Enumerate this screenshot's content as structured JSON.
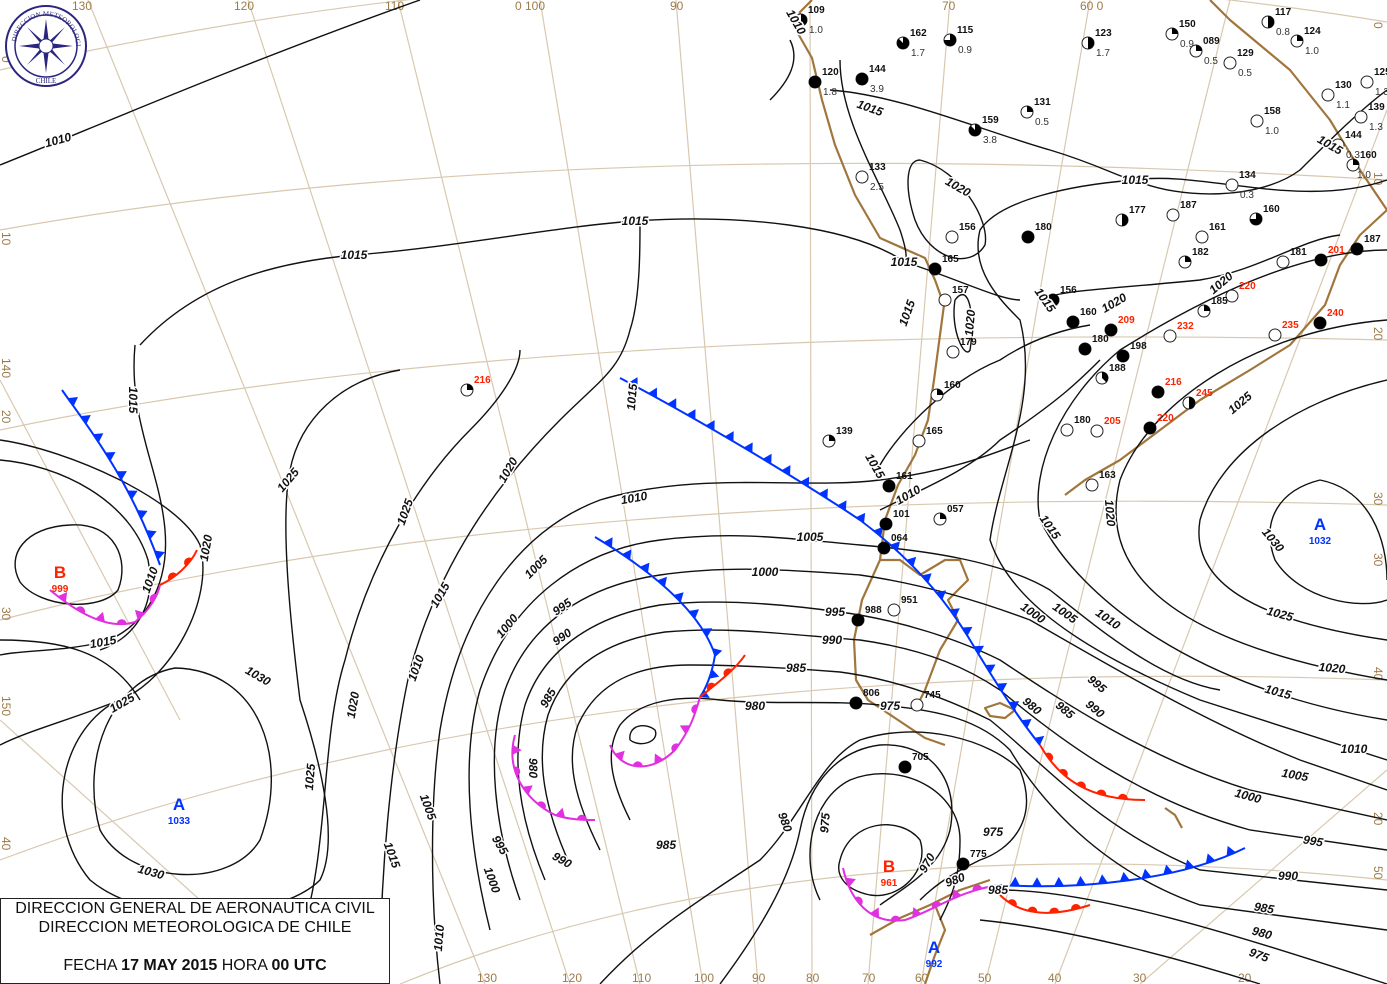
{
  "caption": {
    "line1": "DIRECCION GENERAL DE AERONAUTICA CIVIL",
    "line2": "DIRECCION METEOROLOGICA DE CHILE",
    "fecha_label": "FECHA",
    "date": "17 MAY 2015",
    "hora_label": "HORA",
    "time": "00 UTC"
  },
  "logo": {
    "top_text": "DIRECCION METEOROLOGICA",
    "bottom_text": "CHILE",
    "icon": "compass-rose-icon"
  },
  "graticule_labels": {
    "top": [
      "130",
      "120",
      "110",
      "0 100",
      "90",
      "70",
      "60 0"
    ],
    "bottom": [
      "130",
      "120",
      "110",
      "100",
      "90",
      "80",
      "70",
      "60",
      "50",
      "40",
      "30",
      "20"
    ],
    "left": [
      "0",
      "10",
      "140",
      "20",
      "30",
      "150",
      "40"
    ],
    "right": [
      "0",
      "10",
      "20",
      "30",
      "30",
      "40",
      "20",
      "50"
    ]
  },
  "isobar_labels": [
    "1010",
    "1015",
    "1015",
    "1015",
    "1020",
    "1025",
    "1025",
    "1010",
    "1020",
    "1015",
    "1015",
    "1005",
    "1000",
    "995",
    "990",
    "1010",
    "1005",
    "1000",
    "985",
    "980",
    "985",
    "995",
    "990",
    "980",
    "975",
    "1030",
    "1025",
    "1020",
    "1010",
    "1025",
    "1005",
    "1015",
    "995",
    "1000",
    "990",
    "985",
    "980",
    "975",
    "970",
    "975",
    "980",
    "985",
    "1030",
    "1010",
    "1000",
    "1005",
    "1010",
    "995",
    "990",
    "985",
    "980",
    "1025",
    "1020",
    "1015",
    "1010",
    "1005",
    "1000",
    "995",
    "990",
    "985",
    "980",
    "975",
    "1030",
    "1025",
    "1020",
    "1015",
    "1015",
    "1015",
    "1020",
    "1015",
    "1015",
    "1020",
    "1015",
    "1010",
    "1015",
    "1020",
    "1020",
    "1015",
    "1015",
    "1010"
  ],
  "pressure_centers": [
    {
      "type": "B",
      "value": "999",
      "color": "#ff2200"
    },
    {
      "type": "A",
      "value": "1033",
      "color": "#0033ff"
    },
    {
      "type": "A",
      "value": "1032",
      "color": "#0033ff"
    },
    {
      "type": "B",
      "value": "961",
      "color": "#ff2200"
    },
    {
      "type": "A",
      "value": "992",
      "color": "#0033ff"
    }
  ],
  "front_colors": {
    "cold": "#0033ff",
    "warm": "#ff2200",
    "occluded": "#e030e0"
  },
  "stations": [
    {
      "code": "109",
      "cover_oktas": 4,
      "red": false
    },
    {
      "code": "120",
      "cover_oktas": 8,
      "red": false
    },
    {
      "code": "144",
      "cover_oktas": 8,
      "red": false
    },
    {
      "code": "162",
      "cover_oktas": 7,
      "red": false
    },
    {
      "code": "115",
      "cover_oktas": 6,
      "red": false
    },
    {
      "code": "159",
      "cover_oktas": 7,
      "red": false
    },
    {
      "code": "133",
      "cover_oktas": 0,
      "red": false
    },
    {
      "code": "131",
      "cover_oktas": 2,
      "red": false
    },
    {
      "code": "123",
      "cover_oktas": 4,
      "red": false
    },
    {
      "code": "150",
      "cover_oktas": 2,
      "red": false
    },
    {
      "code": "089",
      "cover_oktas": 2,
      "red": false
    },
    {
      "code": "129",
      "cover_oktas": 0,
      "red": false
    },
    {
      "code": "117",
      "cover_oktas": 4,
      "red": false
    },
    {
      "code": "124",
      "cover_oktas": 2,
      "red": false
    },
    {
      "code": "125",
      "cover_oktas": 0,
      "red": false
    },
    {
      "code": "130",
      "cover_oktas": 0,
      "red": false
    },
    {
      "code": "139",
      "cover_oktas": 0,
      "red": false
    },
    {
      "code": "158",
      "cover_oktas": 0,
      "red": false
    },
    {
      "code": "144",
      "cover_oktas": 0,
      "red": false
    },
    {
      "code": "160",
      "cover_oktas": 2,
      "red": false
    },
    {
      "code": "134",
      "cover_oktas": 0,
      "red": false
    },
    {
      "code": "156",
      "cover_oktas": 0,
      "red": false
    },
    {
      "code": "165",
      "cover_oktas": 8,
      "red": false
    },
    {
      "code": "180",
      "cover_oktas": 8,
      "red": false
    },
    {
      "code": "157",
      "cover_oktas": 0,
      "red": false
    },
    {
      "code": "179",
      "cover_oktas": 0,
      "red": false
    },
    {
      "code": "160",
      "cover_oktas": 2,
      "red": false
    },
    {
      "code": "139",
      "cover_oktas": 2,
      "red": false
    },
    {
      "code": "165",
      "cover_oktas": 0,
      "red": false
    },
    {
      "code": "161",
      "cover_oktas": 8,
      "red": false
    },
    {
      "code": "057",
      "cover_oktas": 2,
      "red": false
    },
    {
      "code": "101",
      "cover_oktas": 8,
      "red": false
    },
    {
      "code": "064",
      "cover_oktas": 8,
      "red": false
    },
    {
      "code": "951",
      "cover_oktas": 0,
      "red": false
    },
    {
      "code": "988",
      "cover_oktas": 8,
      "red": false
    },
    {
      "code": "806",
      "cover_oktas": 8,
      "red": false
    },
    {
      "code": "745",
      "cover_oktas": 0,
      "red": false
    },
    {
      "code": "705",
      "cover_oktas": 8,
      "red": false
    },
    {
      "code": "775",
      "cover_oktas": 8,
      "red": false
    },
    {
      "code": "177",
      "cover_oktas": 4,
      "red": false
    },
    {
      "code": "187",
      "cover_oktas": 0,
      "red": false
    },
    {
      "code": "161",
      "cover_oktas": 0,
      "red": false
    },
    {
      "code": "160",
      "cover_oktas": 6,
      "red": false
    },
    {
      "code": "182",
      "cover_oktas": 2,
      "red": false
    },
    {
      "code": "181",
      "cover_oktas": 0,
      "red": false
    },
    {
      "code": "201",
      "cover_oktas": 8,
      "red": true
    },
    {
      "code": "187",
      "cover_oktas": 8,
      "red": false
    },
    {
      "code": "156",
      "cover_oktas": 8,
      "red": false
    },
    {
      "code": "160",
      "cover_oktas": 8,
      "red": false
    },
    {
      "code": "209",
      "cover_oktas": 8,
      "red": true
    },
    {
      "code": "180",
      "cover_oktas": 8,
      "red": false
    },
    {
      "code": "198",
      "cover_oktas": 8,
      "red": false
    },
    {
      "code": "188",
      "cover_oktas": 3,
      "red": false
    },
    {
      "code": "220",
      "cover_oktas": 0,
      "red": true
    },
    {
      "code": "185",
      "cover_oktas": 2,
      "red": false
    },
    {
      "code": "232",
      "cover_oktas": 0,
      "red": true
    },
    {
      "code": "235",
      "cover_oktas": 0,
      "red": true
    },
    {
      "code": "240",
      "cover_oktas": 8,
      "red": true
    },
    {
      "code": "216",
      "cover_oktas": 8,
      "red": true
    },
    {
      "code": "245",
      "cover_oktas": 4,
      "red": true
    },
    {
      "code": "180",
      "cover_oktas": 0,
      "red": false
    },
    {
      "code": "205",
      "cover_oktas": 0,
      "red": true
    },
    {
      "code": "220",
      "cover_oktas": 8,
      "red": true
    },
    {
      "code": "163",
      "cover_oktas": 0,
      "red": false
    },
    {
      "code": "216",
      "cover_oktas": 2,
      "red": true
    }
  ],
  "station_tendencies": [
    "1.0",
    "1.8",
    "3.9",
    "1.7",
    "0.9",
    "3.8",
    "2.5",
    "0.5",
    "1.7",
    "0.9",
    "0.5",
    "0.5",
    "0.8",
    "1.0",
    "1.3",
    "1.1",
    "1.3",
    "1.0",
    "0.3",
    "1.0",
    "0.3"
  ]
}
